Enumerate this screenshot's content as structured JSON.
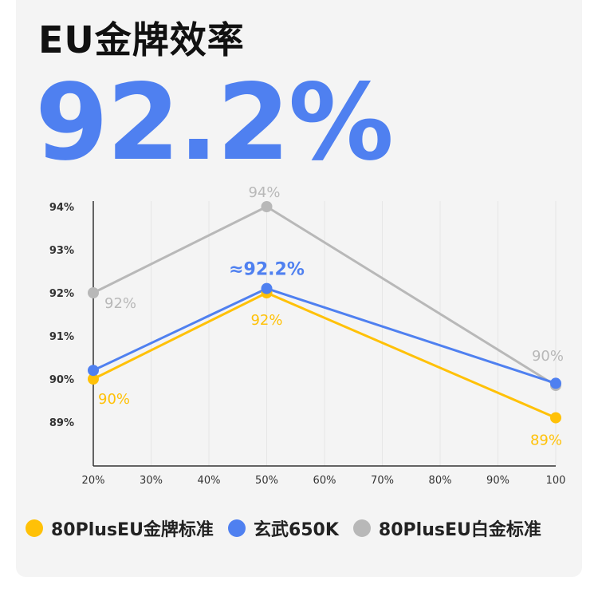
{
  "header": {
    "title": "EU金牌效率",
    "headline_value": "92.2%"
  },
  "chart_data": {
    "type": "line",
    "categories": [
      "20%",
      "30%",
      "40%",
      "50%",
      "60%",
      "70%",
      "80%",
      "90%",
      "100"
    ],
    "y_ticks": [
      "94%",
      "93%",
      "92%",
      "91%",
      "90%",
      "89%"
    ],
    "ylim": [
      88.0,
      94.2
    ],
    "grid": true,
    "legend_position": "bottom",
    "series": [
      {
        "name": "80PlusEU金牌标准",
        "color": "#ffc107",
        "points": [
          {
            "x": "20%",
            "y": 90.0
          },
          {
            "x": "50%",
            "y": 92.0
          },
          {
            "x": "100",
            "y": 89.1
          }
        ],
        "labels": [
          {
            "x": "20%",
            "text": "90%"
          },
          {
            "x": "50%",
            "text": "92%"
          },
          {
            "x": "100",
            "text": "89%"
          }
        ]
      },
      {
        "name": "玄武650K",
        "color": "#4f80f0",
        "points": [
          {
            "x": "20%",
            "y": 90.2
          },
          {
            "x": "50%",
            "y": 92.1
          },
          {
            "x": "100",
            "y": 89.9
          }
        ],
        "labels": [
          {
            "x": "50%",
            "text": "≈92.2%"
          }
        ]
      },
      {
        "name": "80PlusEU白金标准",
        "color": "#b8b8b8",
        "points": [
          {
            "x": "20%",
            "y": 92.0
          },
          {
            "x": "50%",
            "y": 94.0
          },
          {
            "x": "100",
            "y": 89.85
          }
        ],
        "labels": [
          {
            "x": "20%",
            "text": "92%"
          },
          {
            "x": "50%",
            "text": "94%"
          },
          {
            "x": "100",
            "text": "90%"
          }
        ]
      }
    ]
  }
}
